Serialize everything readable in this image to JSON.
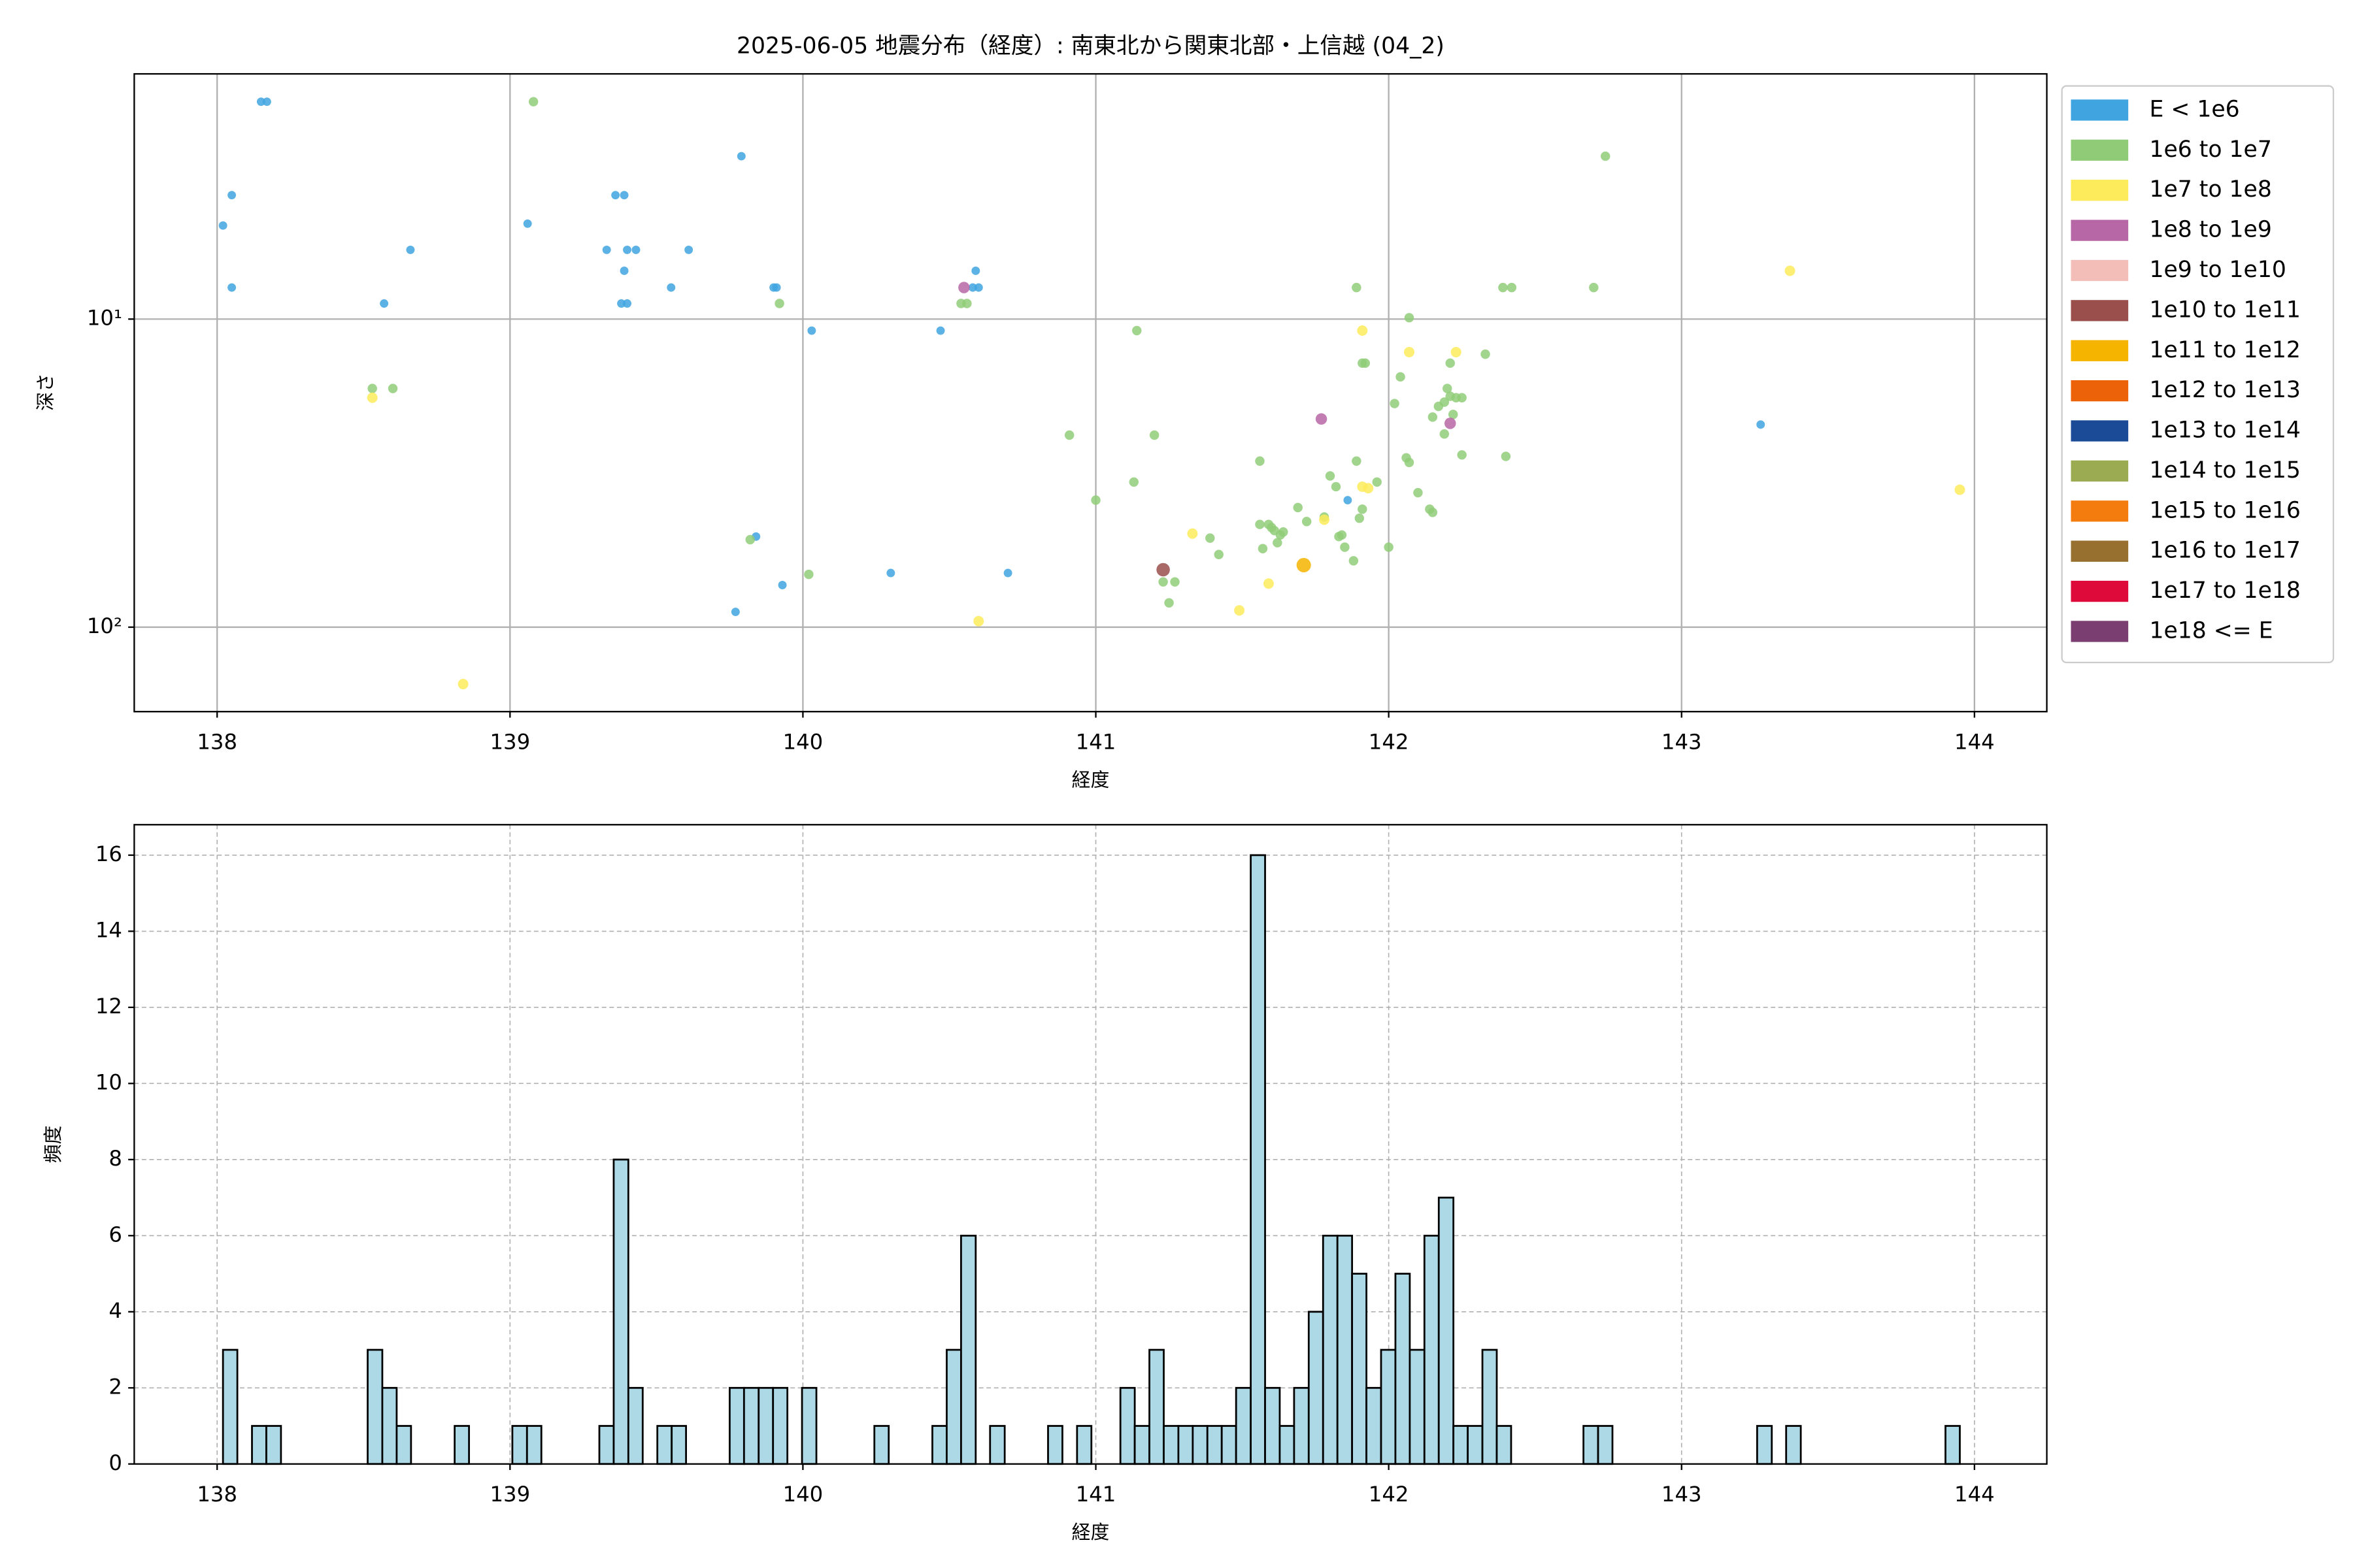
{
  "chart_data": [
    {
      "type": "scatter",
      "title": "2025-06-05 地震分布（経度）: 南東北から関東北部・上信越 (04_2)",
      "x_label": "経度",
      "y_label": "深さ",
      "log_y": true,
      "grid": true,
      "legend": "outside right",
      "xlim": [
        137.717,
        144.247
      ],
      "ylim": [
        188,
        1.6
      ],
      "xticks": [
        138,
        139,
        140,
        141,
        142,
        143,
        144
      ],
      "yticks": [
        {
          "value": 10,
          "label": "10¹"
        },
        {
          "value": 100,
          "label": "10²"
        }
      ],
      "series": [
        {
          "name": "E < 1e6",
          "color": "#3fa4e0",
          "x": [
            138.15,
            138.17,
            138.02,
            138.05,
            138.05,
            138.57,
            138.66,
            139.06,
            139.79,
            139.36,
            139.39,
            139.33,
            139.4,
            139.43,
            139.39,
            139.38,
            139.4,
            139.55,
            139.61,
            139.9,
            139.91,
            140.03,
            140.47,
            140.58,
            140.6,
            140.59,
            139.84,
            139.93,
            139.77,
            140.3,
            140.7,
            141.86,
            143.27
          ],
          "y": [
            1.97,
            1.97,
            4.97,
            3.96,
            7.9,
            8.9,
            5.96,
            4.9,
            2.96,
            3.96,
            3.96,
            5.96,
            5.96,
            5.96,
            6.97,
            8.9,
            8.9,
            7.9,
            5.96,
            7.9,
            7.9,
            10.9,
            10.9,
            7.9,
            7.9,
            6.97,
            50.8,
            73,
            89.2,
            66.7,
            66.7,
            38.7,
            22
          ]
        },
        {
          "name": "1e6 to 1e7",
          "color": "#90cc78",
          "x": [
            139.08,
            138.53,
            138.6,
            139.92,
            139.82,
            140.02,
            140.54,
            140.56,
            140.91,
            141.0,
            141.14,
            141.2,
            141.13,
            141.23,
            141.27,
            141.25,
            141.39,
            141.42,
            141.56,
            141.56,
            141.59,
            141.6,
            141.61,
            141.63,
            141.64,
            141.57,
            141.62,
            141.69,
            141.72,
            141.78,
            141.8,
            141.82,
            141.84,
            141.85,
            141.83,
            141.89,
            141.9,
            141.91,
            141.88,
            141.96,
            141.89,
            141.91,
            141.92,
            142.0,
            142.02,
            142.04,
            142.06,
            142.07,
            142.07,
            142.1,
            142.14,
            142.15,
            142.15,
            142.17,
            142.19,
            142.21,
            142.23,
            142.25,
            142.2,
            142.22,
            142.19,
            142.21,
            142.25,
            142.4,
            142.39,
            142.42,
            142.7,
            142.74,
            142.33
          ],
          "y": [
            1.97,
            16.8,
            16.8,
            8.9,
            52,
            67.4,
            8.9,
            8.9,
            23.8,
            38.7,
            10.9,
            23.8,
            33.8,
            71.3,
            71.3,
            83.4,
            51.4,
            58.1,
            28.9,
            46.4,
            46.4,
            47.5,
            48.6,
            50.2,
            49.1,
            55.6,
            53.2,
            40.9,
            45.4,
            43.9,
            32.3,
            35,
            50.2,
            55,
            50.8,
            28.9,
            44.3,
            41.4,
            60.9,
            33.8,
            7.9,
            13.9,
            13.9,
            55,
            18.8,
            15.4,
            28.2,
            29.2,
            9.9,
            36.6,
            41.4,
            42.4,
            20.8,
            19.2,
            18.6,
            17.8,
            18,
            18,
            16.8,
            20.4,
            23.6,
            13.9,
            27.6,
            27.9,
            7.9,
            7.9,
            7.9,
            2.96,
            13
          ]
        },
        {
          "name": "1e7 to 1e8",
          "color": "#fdeb5c",
          "x": [
            138.53,
            138.84,
            140.6,
            141.33,
            141.49,
            141.59,
            141.78,
            141.91,
            141.93,
            141.91,
            142.07,
            142.23,
            143.37,
            143.95
          ],
          "y": [
            18,
            153,
            95.6,
            49.7,
            88.2,
            72.2,
            44.8,
            35,
            35.4,
            10.9,
            12.8,
            12.8,
            6.97,
            35.8
          ]
        },
        {
          "name": "1e8 to 1e9",
          "color": "#b767a5",
          "x": [
            140.55,
            141.77,
            142.21
          ],
          "y": [
            7.9,
            21.1,
            21.8
          ]
        },
        {
          "name": "1e9 to 1e10",
          "color": "#f3bdb8",
          "x": [],
          "y": []
        },
        {
          "name": "1e10 to 1e11",
          "color": "#9a4f4c",
          "x": [
            141.23
          ],
          "y": [
            65.1
          ]
        },
        {
          "name": "1e11 to 1e12",
          "color": "#f5b400",
          "x": [
            141.71
          ],
          "y": [
            62.9
          ]
        },
        {
          "name": "1e12 to 1e13",
          "color": "#ec6209",
          "x": [],
          "y": []
        },
        {
          "name": "1e13 to 1e14",
          "color": "#1b4a96",
          "x": [],
          "y": []
        },
        {
          "name": "1e14 to 1e15",
          "color": "#9aab52",
          "x": [],
          "y": []
        },
        {
          "name": "1e15 to 1e16",
          "color": "#f47b0e",
          "x": [],
          "y": []
        },
        {
          "name": "1e16 to 1e17",
          "color": "#97702f",
          "x": [],
          "y": []
        },
        {
          "name": "1e17 to 1e18",
          "color": "#dd0a3a",
          "x": [],
          "y": []
        },
        {
          "name": "1e18 <= E",
          "color": "#7a3f70",
          "x": [],
          "y": []
        }
      ]
    },
    {
      "type": "histogram",
      "x_label": "経度",
      "y_label": "頻度",
      "color": "#add8e6",
      "edgecolor": "#000000",
      "grid": "dashed",
      "xlim": [
        137.717,
        144.247
      ],
      "ylim": [
        0,
        16.8
      ],
      "xticks": [
        138,
        139,
        140,
        141,
        142,
        143,
        144
      ],
      "yticks": [
        0,
        2,
        4,
        6,
        8,
        10,
        12,
        14,
        16
      ],
      "bins": [
        138.02,
        138.069,
        138.119,
        138.168,
        138.218,
        138.267,
        138.317,
        138.366,
        138.415,
        138.465,
        138.514,
        138.564,
        138.613,
        138.662,
        138.712,
        138.761,
        138.811,
        138.86,
        138.91,
        138.959,
        139.008,
        139.058,
        139.107,
        139.157,
        139.206,
        139.256,
        139.305,
        139.354,
        139.404,
        139.453,
        139.503,
        139.552,
        139.601,
        139.651,
        139.7,
        139.75,
        139.799,
        139.849,
        139.898,
        139.947,
        139.997,
        140.046,
        140.096,
        140.145,
        140.194,
        140.244,
        140.293,
        140.343,
        140.392,
        140.442,
        140.491,
        140.54,
        140.59,
        140.639,
        140.689,
        140.738,
        140.788,
        140.837,
        140.886,
        140.936,
        140.985,
        141.035,
        141.084,
        141.133,
        141.183,
        141.232,
        141.282,
        141.331,
        141.381,
        141.43,
        141.479,
        141.529,
        141.578,
        141.628,
        141.677,
        141.727,
        141.776,
        141.825,
        141.875,
        141.924,
        141.974,
        142.023,
        142.072,
        142.122,
        142.171,
        142.221,
        142.27,
        142.32,
        142.369,
        142.418,
        142.468,
        142.517,
        142.567,
        142.616,
        142.665,
        142.715,
        142.764,
        142.814,
        142.863,
        142.913,
        142.962,
        143.011,
        143.061,
        143.11,
        143.16,
        143.209,
        143.258,
        143.308,
        143.357,
        143.407,
        143.456,
        143.506,
        143.555,
        143.604,
        143.654,
        143.703,
        143.753,
        143.802,
        143.852,
        143.901,
        143.95
      ],
      "counts": [
        3,
        0,
        1,
        1,
        0,
        0,
        0,
        0,
        0,
        0,
        3,
        2,
        1,
        0,
        0,
        0,
        1,
        0,
        0,
        0,
        1,
        1,
        0,
        0,
        0,
        0,
        1,
        8,
        2,
        0,
        1,
        1,
        0,
        0,
        0,
        2,
        2,
        2,
        2,
        0,
        2,
        0,
        0,
        0,
        0,
        1,
        0,
        0,
        0,
        1,
        3,
        6,
        0,
        1,
        0,
        0,
        0,
        1,
        0,
        1,
        0,
        0,
        2,
        1,
        3,
        1,
        1,
        1,
        1,
        1,
        2,
        16,
        2,
        1,
        2,
        4,
        6,
        6,
        5,
        2,
        3,
        5,
        3,
        6,
        7,
        1,
        1,
        3,
        1,
        0,
        0,
        0,
        0,
        0,
        1,
        1,
        0,
        0,
        0,
        0,
        0,
        0,
        0,
        0,
        0,
        0,
        1,
        0,
        1,
        0,
        0,
        0,
        0,
        0,
        0,
        0,
        0,
        0,
        0,
        1
      ]
    }
  ]
}
